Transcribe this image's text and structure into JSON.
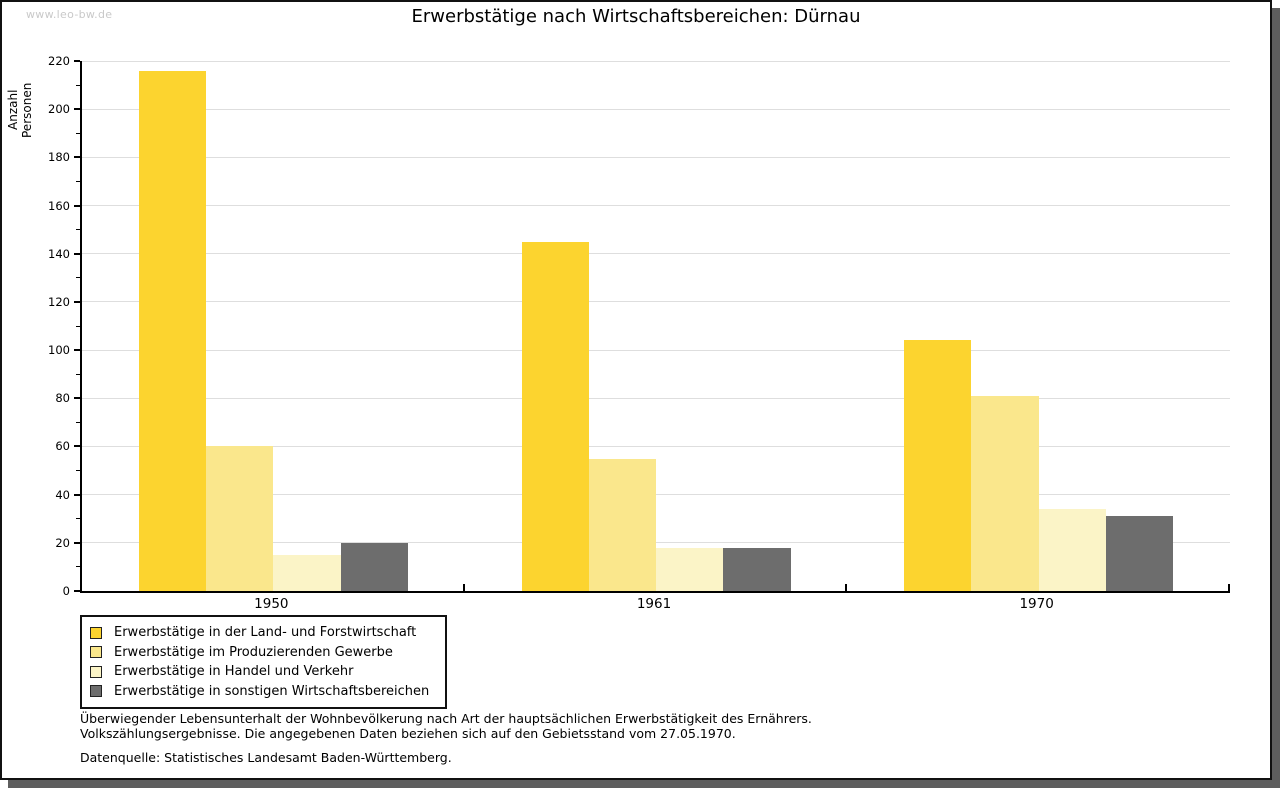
{
  "header": {
    "watermark": "www.leo-bw.de"
  },
  "chart_data": {
    "type": "bar",
    "title": "Erwerbstätige nach Wirtschaftsbereichen: Dürnau",
    "ylabel": "Anzahl Personen",
    "xlabel": "",
    "categories": [
      "1950",
      "1961",
      "1970"
    ],
    "series": [
      {
        "name": "Erwerbstätige in der Land- und Forstwirtschaft",
        "color": "#FCD42F",
        "values": [
          216,
          145,
          104
        ]
      },
      {
        "name": "Erwerbstätige im Produzierenden Gewerbe",
        "color": "#FAE78C",
        "values": [
          60,
          55,
          81
        ]
      },
      {
        "name": "Erwerbstätige in Handel und Verkehr",
        "color": "#FBF4C7",
        "values": [
          15,
          18,
          34
        ]
      },
      {
        "name": "Erwerbstätige in sonstigen Wirtschaftsbereichen",
        "color": "#6D6D6D",
        "values": [
          20,
          18,
          31
        ]
      }
    ],
    "ylim": [
      0,
      220
    ],
    "ytick_step": 20,
    "yticks": [
      0,
      20,
      40,
      60,
      80,
      100,
      120,
      140,
      160,
      180,
      200,
      220
    ],
    "grid": true,
    "gridline_color": "#dedede",
    "legend_position": "bottom-left"
  },
  "notes": {
    "line1": "Überwiegender Lebensunterhalt der Wohnbevölkerung nach Art der hauptsächlichen Erwerbstätigkeit des Ernährers.",
    "line2": "Volkszählungsergebnisse. Die angegebenen Daten beziehen sich auf den Gebietsstand vom 27.05.1970.",
    "source": "Datenquelle: Statistisches Landesamt Baden-Württemberg."
  }
}
